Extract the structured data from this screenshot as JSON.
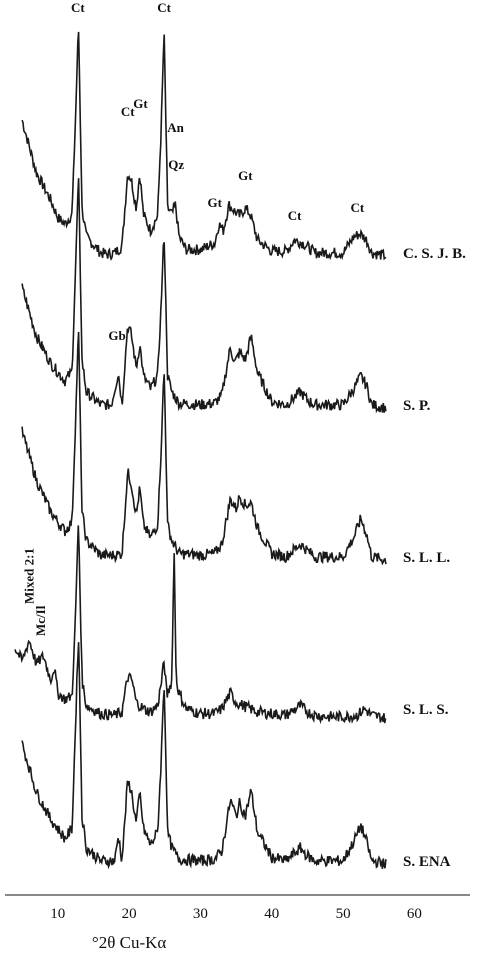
{
  "chart_data": {
    "type": "line",
    "title": "",
    "xlabel": "°2θ Cu-Kα",
    "ylabel": "",
    "xlim": [
      4,
      57
    ],
    "x_ticks": [
      "10",
      "20",
      "30",
      "40",
      "50",
      "60"
    ],
    "grid": false,
    "series": [
      {
        "name": "C. S. J. B.",
        "baseline_offset": 4,
        "x": [
          5,
          7,
          9,
          10,
          11,
          12,
          12.4,
          12.9,
          13.4,
          14,
          16,
          17,
          18,
          19,
          19.8,
          20.3,
          21,
          21.5,
          22,
          23,
          24,
          24.5,
          24.9,
          25.4,
          26,
          26.5,
          27,
          28,
          30,
          32,
          32.6,
          33.2,
          34,
          34.8,
          35.5,
          36.3,
          37,
          38,
          40,
          42,
          43.2,
          44.4,
          46,
          48,
          50,
          51.5,
          52.4,
          53.3,
          54,
          56
        ],
        "y": [
          0.95,
          0.62,
          0.45,
          0.34,
          0.3,
          0.36,
          0.85,
          1.55,
          0.4,
          0.22,
          0.12,
          0.11,
          0.12,
          0.16,
          0.62,
          0.58,
          0.4,
          0.62,
          0.36,
          0.26,
          0.35,
          0.9,
          1.5,
          0.4,
          0.36,
          0.42,
          0.22,
          0.14,
          0.14,
          0.18,
          0.3,
          0.26,
          0.42,
          0.38,
          0.35,
          0.4,
          0.36,
          0.2,
          0.13,
          0.13,
          0.2,
          0.18,
          0.12,
          0.12,
          0.12,
          0.22,
          0.24,
          0.2,
          0.12,
          0.1
        ]
      },
      {
        "name": "S. P.",
        "baseline_offset": 3,
        "x": [
          5,
          7,
          9,
          11,
          12,
          12.4,
          12.9,
          13.4,
          14,
          16,
          17.5,
          18.5,
          19,
          19.8,
          20.3,
          21,
          21.5,
          22,
          23,
          24,
          24.5,
          24.9,
          25.4,
          26,
          27,
          30,
          32,
          33,
          34.2,
          34.8,
          35.5,
          36.3,
          37.1,
          38,
          40,
          42,
          44,
          45,
          46,
          48,
          50,
          51.5,
          52.5,
          53.3,
          54,
          56
        ],
        "y": [
          0.85,
          0.55,
          0.38,
          0.27,
          0.33,
          0.85,
          1.55,
          0.4,
          0.2,
          0.12,
          0.12,
          0.32,
          0.12,
          0.62,
          0.56,
          0.35,
          0.5,
          0.3,
          0.22,
          0.3,
          0.75,
          1.2,
          0.3,
          0.2,
          0.13,
          0.12,
          0.13,
          0.18,
          0.48,
          0.38,
          0.45,
          0.4,
          0.55,
          0.32,
          0.14,
          0.12,
          0.2,
          0.15,
          0.12,
          0.12,
          0.12,
          0.22,
          0.3,
          0.24,
          0.12,
          0.1
        ]
      },
      {
        "name": "S. L. L.",
        "baseline_offset": 2,
        "x": [
          5,
          7,
          9,
          11,
          12,
          12.4,
          12.9,
          13.4,
          14,
          16,
          18,
          19,
          19.8,
          20.3,
          21,
          21.5,
          22,
          23,
          24,
          24.5,
          24.9,
          25.4,
          26,
          27,
          30,
          32,
          33,
          34.2,
          35,
          35.5,
          36.3,
          37.1,
          38,
          40,
          42,
          44,
          45,
          46,
          48,
          50,
          51.5,
          52.5,
          53.3,
          54,
          56
        ],
        "y": [
          0.9,
          0.6,
          0.4,
          0.28,
          0.34,
          0.85,
          1.55,
          0.4,
          0.22,
          0.13,
          0.13,
          0.14,
          0.65,
          0.58,
          0.38,
          0.55,
          0.32,
          0.24,
          0.32,
          0.8,
          1.3,
          0.32,
          0.22,
          0.14,
          0.13,
          0.14,
          0.2,
          0.48,
          0.42,
          0.5,
          0.44,
          0.46,
          0.3,
          0.14,
          0.12,
          0.2,
          0.16,
          0.12,
          0.12,
          0.12,
          0.24,
          0.36,
          0.26,
          0.12,
          0.1
        ]
      },
      {
        "name": "S. L. S.",
        "baseline_offset": 1,
        "x": [
          4,
          5,
          6,
          7,
          8,
          9,
          9.5,
          10,
          11,
          12,
          12.4,
          12.9,
          13.4,
          14,
          16,
          18,
          19,
          19.8,
          20.4,
          21,
          22,
          23,
          24,
          24.5,
          24.9,
          25.3,
          26,
          26.3,
          26.6,
          27,
          28,
          30,
          32,
          33,
          34.2,
          35,
          36,
          38,
          40,
          42,
          44,
          45,
          46,
          48,
          50,
          52,
          53,
          54,
          56
        ],
        "y": [
          0.5,
          0.42,
          0.55,
          0.4,
          0.45,
          0.3,
          0.38,
          0.22,
          0.18,
          0.2,
          0.6,
          1.3,
          0.3,
          0.14,
          0.09,
          0.08,
          0.1,
          0.32,
          0.3,
          0.16,
          0.12,
          0.1,
          0.14,
          0.28,
          0.42,
          0.2,
          0.3,
          1.15,
          0.3,
          0.22,
          0.12,
          0.09,
          0.09,
          0.12,
          0.22,
          0.16,
          0.14,
          0.1,
          0.09,
          0.08,
          0.14,
          0.1,
          0.08,
          0.07,
          0.07,
          0.08,
          0.12,
          0.08,
          0.06
        ]
      },
      {
        "name": "S. ENA",
        "baseline_offset": 0,
        "x": [
          5,
          7,
          9,
          11,
          12,
          12.4,
          12.9,
          13.4,
          14,
          16,
          18,
          18.5,
          19,
          19.8,
          20.3,
          21,
          21.5,
          22,
          23,
          24,
          24.5,
          24.9,
          25.4,
          26,
          27,
          30,
          32,
          33,
          34.2,
          35,
          35.5,
          36.3,
          37.1,
          38,
          40,
          42,
          44,
          45,
          46,
          48,
          50,
          51.5,
          52.5,
          53.3,
          54,
          56
        ],
        "y": [
          0.85,
          0.55,
          0.38,
          0.26,
          0.32,
          0.85,
          1.55,
          0.4,
          0.2,
          0.12,
          0.12,
          0.28,
          0.12,
          0.62,
          0.56,
          0.35,
          0.55,
          0.32,
          0.22,
          0.3,
          0.75,
          1.25,
          0.3,
          0.2,
          0.13,
          0.12,
          0.13,
          0.18,
          0.5,
          0.4,
          0.48,
          0.4,
          0.56,
          0.3,
          0.14,
          0.12,
          0.2,
          0.15,
          0.12,
          0.12,
          0.12,
          0.24,
          0.34,
          0.24,
          0.12,
          0.1
        ]
      }
    ],
    "peak_annotations": [
      {
        "text": "Ct",
        "x": 12.8,
        "y": 1.6,
        "series": "C. S. J. B."
      },
      {
        "text": "Ct",
        "x": 19.8,
        "y": 0.95,
        "series": "C. S. J. B."
      },
      {
        "text": "Gt",
        "x": 21.6,
        "y": 1.0,
        "series": "C. S. J. B."
      },
      {
        "text": "Ct",
        "x": 24.9,
        "y": 1.6,
        "series": "C. S. J. B."
      },
      {
        "text": "An",
        "x": 26.5,
        "y": 0.85,
        "series": "C. S. J. B."
      },
      {
        "text": "Qz",
        "x": 26.6,
        "y": 0.62,
        "series": "C. S. J. B."
      },
      {
        "text": "Gt",
        "x": 32.0,
        "y": 0.38,
        "series": "C. S. J. B."
      },
      {
        "text": "Gt",
        "x": 36.3,
        "y": 0.55,
        "series": "C. S. J. B."
      },
      {
        "text": "Ct",
        "x": 43.2,
        "y": 0.3,
        "series": "C. S. J. B."
      },
      {
        "text": "Ct",
        "x": 52.0,
        "y": 0.35,
        "series": "C. S. J. B."
      },
      {
        "text": "Gb",
        "x": 18.3,
        "y": 0.5,
        "series": "S. P."
      },
      {
        "text": "Mixed 2:1",
        "x": 6.6,
        "y": 0.75,
        "series": "S. L. S.",
        "rotate": true
      },
      {
        "text": "Mc/Il",
        "x": 8.2,
        "y": 0.55,
        "series": "S. L. S.",
        "rotate": true
      }
    ]
  }
}
